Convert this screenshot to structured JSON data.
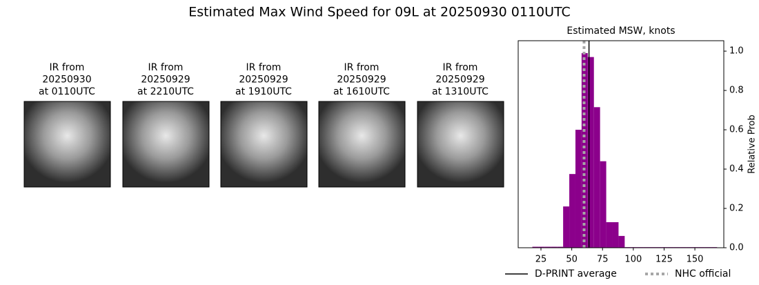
{
  "title": "Estimated Max Wind Speed for 09L at 20250930 0110UTC",
  "images": [
    {
      "lines": [
        "IR from",
        "20250930",
        "at 0110UTC"
      ]
    },
    {
      "lines": [
        "IR from",
        "20250929",
        "at 2210UTC"
      ]
    },
    {
      "lines": [
        "IR from",
        "20250929",
        "at 1910UTC"
      ]
    },
    {
      "lines": [
        "IR from",
        "20250929",
        "at 1610UTC"
      ]
    },
    {
      "lines": [
        "IR from",
        "20250929",
        "at 1310UTC"
      ]
    }
  ],
  "chart_data": {
    "type": "histogram",
    "title": "Estimated MSW, knots",
    "ylabel": "Relative Prob",
    "color": "#8b008b",
    "bins": [
      18,
      23,
      28,
      33,
      38,
      43,
      48,
      53,
      58,
      63,
      68,
      73,
      78,
      83,
      88,
      93,
      98,
      103,
      108,
      113,
      118,
      123,
      128,
      133,
      138,
      143,
      148,
      153,
      158,
      163,
      168
    ],
    "values": [
      0.005,
      0.005,
      0.005,
      0.005,
      0.005,
      0.21,
      0.375,
      0.6,
      0.99,
      0.97,
      0.715,
      0.44,
      0.13,
      0.13,
      0.06,
      0.003,
      0.003,
      0.003,
      0.003,
      0.003,
      0.003,
      0.003,
      0.003,
      0.003,
      0.003,
      0.003,
      0.003,
      0.003,
      0.003,
      0.003
    ],
    "xlim": [
      6.5,
      173.5
    ],
    "xticks": [
      25,
      50,
      75,
      100,
      125,
      150
    ],
    "ylim": [
      0,
      1.053
    ],
    "yticks": [
      {
        "value": 0,
        "label": "0.0"
      },
      0.2,
      0.4,
      0.6,
      0.8,
      {
        "value": 1,
        "label": "1.0"
      }
    ],
    "lines": [
      {
        "name": "D-PRINT average",
        "value": 64,
        "color": "#000000",
        "style": "solid"
      },
      {
        "name": "NHC official",
        "value": 60,
        "color": "#a6a6a6",
        "style": "dotted"
      }
    ]
  }
}
